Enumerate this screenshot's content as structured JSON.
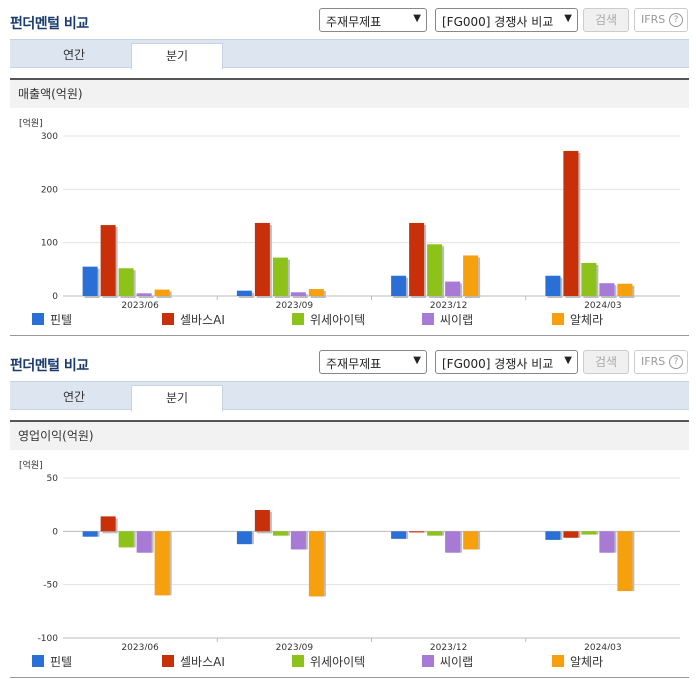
{
  "header": {
    "title": "펀더멘털 비교",
    "select_statement": "주재무제표",
    "select_compare": "[FG000] 경쟁사 비교",
    "search_label": "검색",
    "ifrs_label": "IFRS",
    "help_glyph": "?"
  },
  "tabs": [
    {
      "label": "연간"
    },
    {
      "label": "분기",
      "active": true
    }
  ],
  "colors": {
    "핀텔": "#2a6fd6",
    "셀바스AI": "#c8300a",
    "위세아이텍": "#8cc21a",
    "씨이랩": "#a77ad6",
    "알체라": "#f7a00e"
  },
  "panels": [
    {
      "header": {
        "title": "펀더멘털 비교"
      },
      "subtitle": "매출액(억원)"
    },
    {
      "header": {
        "title": "펀더멘털 비교"
      },
      "subtitle": "영업이익(억원)"
    }
  ],
  "chart_data": [
    {
      "type": "bar",
      "title": "매출액(억원)",
      "unit_label": "[억원]",
      "categories": [
        "2023/06",
        "2023/09",
        "2023/12",
        "2024/03"
      ],
      "ylim": [
        0,
        300
      ],
      "yticks": [
        0,
        100,
        200,
        300
      ],
      "series": [
        {
          "name": "핀텔",
          "color": "#2a6fd6",
          "values": [
            55,
            10,
            38,
            38
          ]
        },
        {
          "name": "셀바스AI",
          "color": "#c8300a",
          "values": [
            133,
            137,
            137,
            272
          ]
        },
        {
          "name": "위세아이텍",
          "color": "#8cc21a",
          "values": [
            52,
            72,
            97,
            62
          ]
        },
        {
          "name": "씨이랩",
          "color": "#a77ad6",
          "values": [
            5,
            7,
            27,
            24
          ]
        },
        {
          "name": "알체라",
          "color": "#f7a00e",
          "values": [
            12,
            13,
            76,
            23
          ]
        }
      ]
    },
    {
      "type": "bar",
      "title": "영업이익(억원)",
      "unit_label": "[억원]",
      "categories": [
        "2023/06",
        "2023/09",
        "2023/12",
        "2024/03"
      ],
      "ylim": [
        -100,
        50
      ],
      "yticks": [
        -100,
        -50,
        0,
        50
      ],
      "series": [
        {
          "name": "핀텔",
          "color": "#2a6fd6",
          "values": [
            -5,
            -12,
            -7,
            -8
          ]
        },
        {
          "name": "셀바스AI",
          "color": "#c8300a",
          "values": [
            14,
            20,
            -1,
            -6
          ]
        },
        {
          "name": "위세아이텍",
          "color": "#8cc21a",
          "values": [
            -15,
            -4,
            -4,
            -3
          ]
        },
        {
          "name": "씨이랩",
          "color": "#a77ad6",
          "values": [
            -20,
            -17,
            -20,
            -20
          ]
        },
        {
          "name": "알체라",
          "color": "#f7a00e",
          "values": [
            -60,
            -61,
            -17,
            -56
          ]
        }
      ]
    }
  ]
}
